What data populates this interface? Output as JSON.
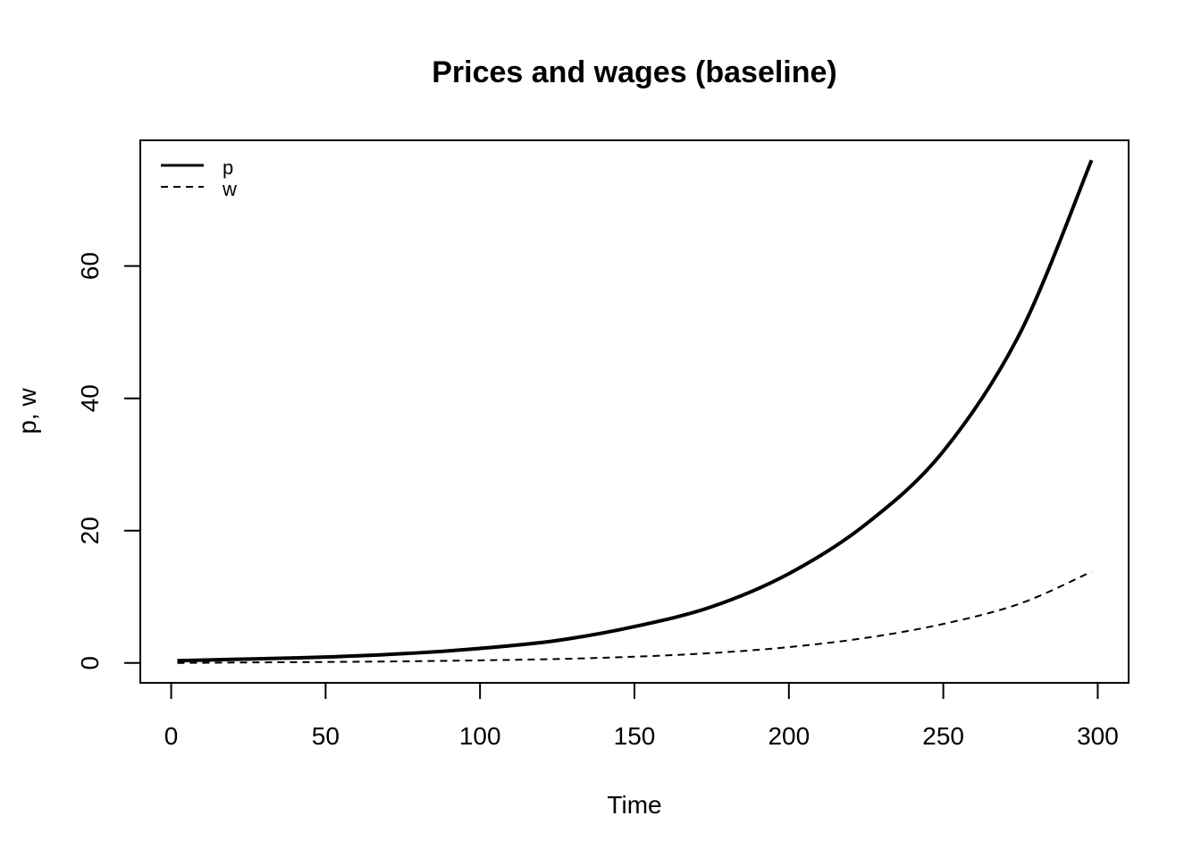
{
  "chart_data": {
    "type": "line",
    "title": "Prices and wages (baseline)",
    "xlabel": "Time",
    "ylabel": "p, w",
    "xlim": [
      -10,
      310
    ],
    "ylim": [
      -3,
      79
    ],
    "x_ticks": [
      0,
      50,
      100,
      150,
      200,
      250,
      300
    ],
    "y_ticks": [
      0,
      20,
      40,
      60
    ],
    "grid": false,
    "legend": {
      "position": "top-left",
      "boxed": false
    },
    "series": [
      {
        "name": "p",
        "line_style": "solid",
        "color": "#000000",
        "x": [
          2,
          25,
          50,
          75,
          100,
          125,
          150,
          175,
          200,
          225,
          250,
          275,
          298
        ],
        "y": [
          0.35,
          0.6,
          0.9,
          1.4,
          2.2,
          3.4,
          5.5,
          8.5,
          13.5,
          21.0,
          32.0,
          50.0,
          76.0
        ]
      },
      {
        "name": "w",
        "line_style": "dashed",
        "color": "#000000",
        "x": [
          2,
          25,
          50,
          75,
          100,
          125,
          150,
          175,
          200,
          225,
          250,
          275,
          298
        ],
        "y": [
          0.0,
          0.08,
          0.15,
          0.25,
          0.4,
          0.6,
          0.95,
          1.5,
          2.4,
          3.8,
          5.9,
          9.0,
          13.8
        ]
      }
    ]
  }
}
